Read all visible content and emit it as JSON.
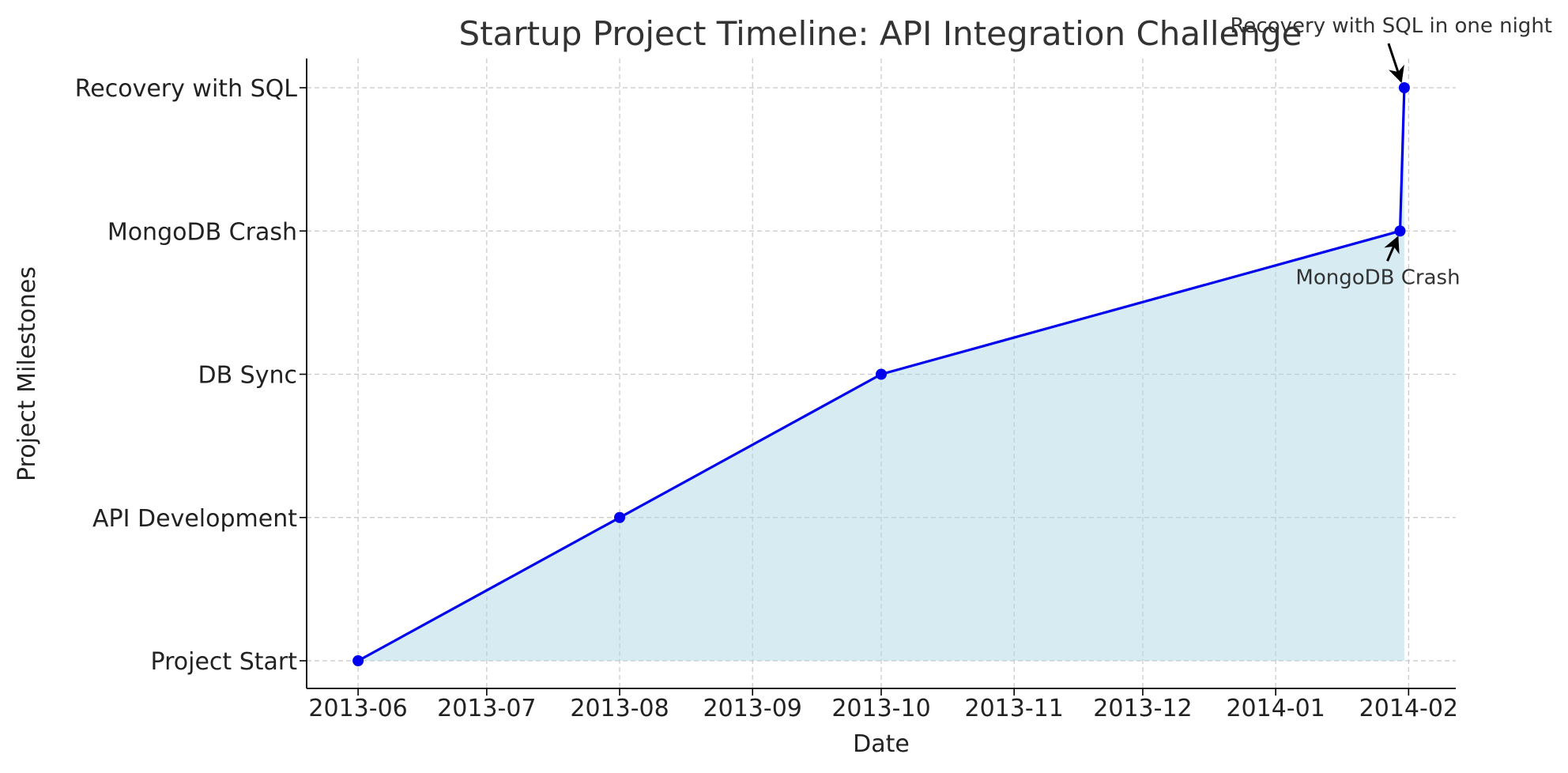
{
  "chart_data": {
    "type": "line",
    "title": "Startup Project Timeline: API Integration Challenge",
    "xlabel": "Date",
    "ylabel": "Project Milestones",
    "x_tick_labels": [
      "2013-06",
      "2013-07",
      "2013-08",
      "2013-09",
      "2013-10",
      "2013-11",
      "2013-12",
      "2014-01",
      "2014-02"
    ],
    "x_tick_dates": [
      "2013-06-01",
      "2013-07-01",
      "2013-08-01",
      "2013-09-01",
      "2013-10-01",
      "2013-11-01",
      "2013-12-01",
      "2014-01-01",
      "2014-02-01"
    ],
    "xlim": [
      "2013-05-20",
      "2014-02-12"
    ],
    "y_categories": [
      "Project Start",
      "API Development",
      "DB Sync",
      "MongoDB Crash",
      "Recovery with SQL"
    ],
    "series": [
      {
        "x": [
          "2013-06-01",
          "2013-08-01",
          "2013-10-01",
          "2014-01-30",
          "2014-01-31"
        ],
        "y": [
          "Project Start",
          "API Development",
          "DB Sync",
          "MongoDB Crash",
          "Recovery with SQL"
        ]
      }
    ],
    "annotations": [
      {
        "text": "MongoDB Crash",
        "x": "2014-01-30",
        "y": "MongoDB Crash"
      },
      {
        "text": "Recovery with SQL in one night",
        "x": "2014-01-31",
        "y": "Recovery with SQL"
      }
    ],
    "grid": true,
    "colors": {
      "line": "#0000ee",
      "marker": "#0000ee",
      "fill": "#add8e6",
      "grid": "#c8c8c8",
      "text": "#333333"
    }
  }
}
